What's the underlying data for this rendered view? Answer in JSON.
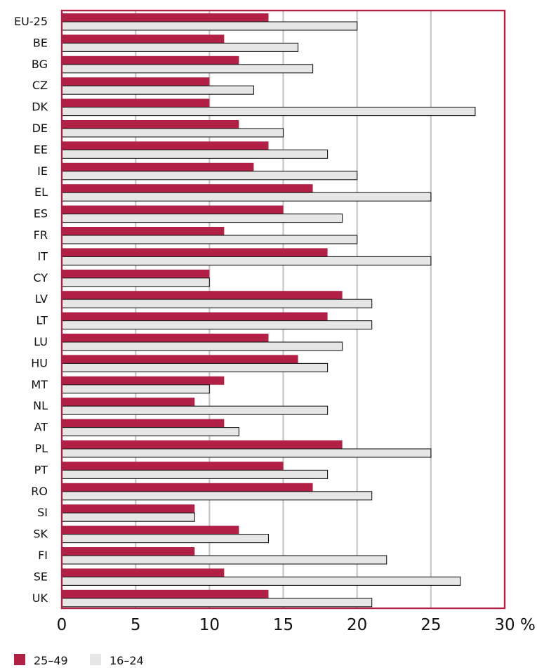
{
  "chart_data": {
    "type": "bar",
    "orientation": "horizontal",
    "categories": [
      "EU-25",
      "BE",
      "BG",
      "CZ",
      "DK",
      "DE",
      "EE",
      "IE",
      "EL",
      "ES",
      "FR",
      "IT",
      "CY",
      "LV",
      "LT",
      "LU",
      "HU",
      "MT",
      "NL",
      "AT",
      "PL",
      "PT",
      "RO",
      "SI",
      "SK",
      "FI",
      "SE",
      "UK"
    ],
    "series": [
      {
        "name": "25–49",
        "color": "#b22046",
        "values": [
          14,
          11,
          12,
          10,
          10,
          12,
          14,
          13,
          17,
          15,
          11,
          18,
          10,
          19,
          18,
          14,
          16,
          11,
          9,
          11,
          19,
          15,
          17,
          9,
          12,
          9,
          11,
          14
        ]
      },
      {
        "name": "16–24",
        "color": "#e6e6e6",
        "values": [
          20,
          16,
          17,
          13,
          28,
          15,
          18,
          20,
          25,
          19,
          20,
          25,
          10,
          21,
          21,
          19,
          18,
          10,
          18,
          12,
          25,
          18,
          21,
          9,
          14,
          22,
          27,
          21
        ]
      }
    ],
    "x_ticks": [
      "0",
      "5",
      "10",
      "15",
      "20",
      "25",
      "30"
    ],
    "x_unit": "%",
    "xlim": [
      0,
      30
    ],
    "grid": true,
    "legend_position": "bottom-left",
    "frame_color": "#b22046"
  }
}
